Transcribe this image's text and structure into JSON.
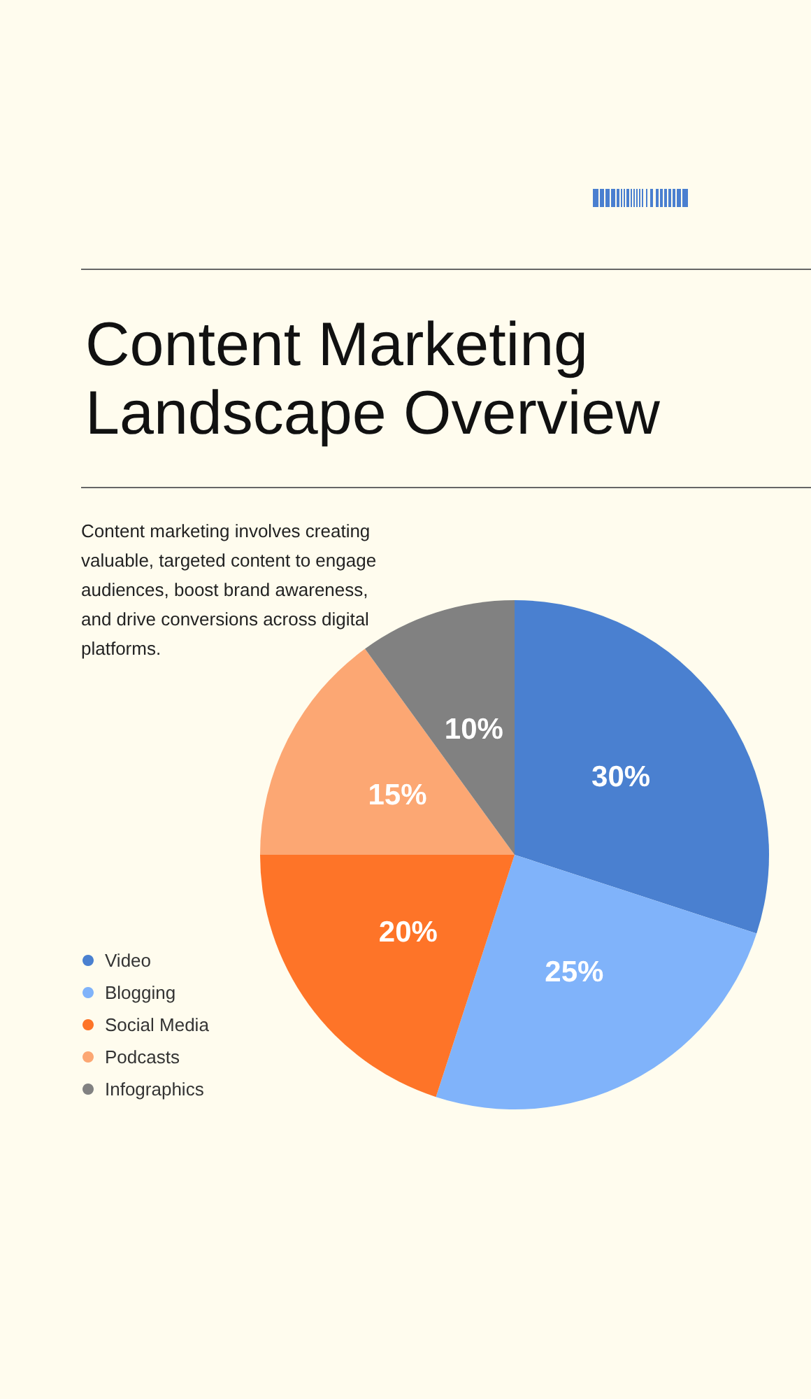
{
  "chart_data": {
    "type": "pie",
    "title": "Content Marketing Landscape Overview",
    "subtitle": "Content marketing involves creating valuable, targeted content to engage audiences, boost brand awareness, and drive conversions across digital platforms.",
    "categories": [
      "Video",
      "Blogging",
      "Social Media",
      "Podcasts",
      "Infographics"
    ],
    "values": [
      30,
      25,
      20,
      15,
      10
    ],
    "value_labels": [
      "30%",
      "25%",
      "20%",
      "15%",
      "10%"
    ],
    "colors": [
      "#4a80d0",
      "#80b3fa",
      "#fe7428",
      "#fca773",
      "#818181"
    ],
    "legend": "bottom left"
  }
}
